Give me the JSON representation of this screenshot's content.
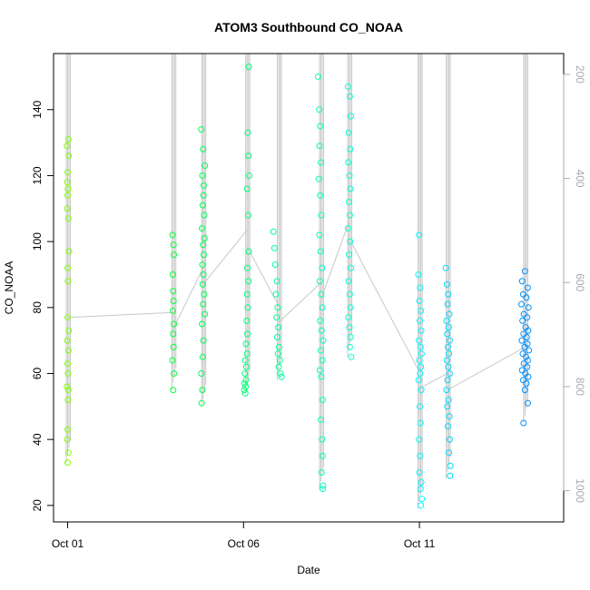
{
  "chart_data": {
    "type": "scatter",
    "title": "ATOM3 Southbound CO_NOAA",
    "xlabel": "Date",
    "ylabel": "CO_NOAA",
    "x_ticks": [
      "Oct 01",
      "Oct 06",
      "Oct 11"
    ],
    "x_tick_days": [
      1,
      6,
      11
    ],
    "xlim": [
      0.6,
      15.1
    ],
    "ylim": [
      15,
      157
    ],
    "y_ticks": [
      20,
      40,
      60,
      80,
      100,
      120,
      140
    ],
    "y2_ticks": [
      200,
      400,
      600,
      800,
      1000
    ],
    "y2lim": [
      1060,
      160
    ],
    "y2_color": "#aaaaaa",
    "grid": false,
    "colors": {
      "marker_gradient": [
        "#80ff00",
        "#00ff40",
        "#00ffaa",
        "#00ffff",
        "#0090ff"
      ],
      "profile_line": "#c8c8c8"
    },
    "profiles": [
      {
        "day": 1.0,
        "ymin": 33,
        "ymax": 131
      },
      {
        "day": 4.0,
        "ymin": 55,
        "ymax": 102
      },
      {
        "day": 4.85,
        "ymin": 50,
        "ymax": 134
      },
      {
        "day": 6.1,
        "ymin": 54,
        "ymax": 153
      },
      {
        "day": 7.0,
        "ymin": 58,
        "ymax": 103
      },
      {
        "day": 8.2,
        "ymin": 25,
        "ymax": 150
      },
      {
        "day": 9.0,
        "ymin": 65,
        "ymax": 147
      },
      {
        "day": 11.0,
        "ymin": 19,
        "ymax": 102
      },
      {
        "day": 11.8,
        "ymin": 28,
        "ymax": 92
      },
      {
        "day": 14.0,
        "ymin": 45,
        "ymax": 91
      }
    ],
    "series": [
      {
        "values": [
          [
            1.02,
            131
          ],
          [
            0.98,
            129
          ],
          [
            1.03,
            126
          ],
          [
            1.0,
            121
          ],
          [
            0.99,
            118
          ],
          [
            1.01,
            116
          ],
          [
            1.0,
            114
          ],
          [
            0.99,
            110
          ],
          [
            1.02,
            107
          ],
          [
            1.04,
            97
          ],
          [
            1.0,
            92
          ],
          [
            1.01,
            88
          ],
          [
            1.0,
            77
          ],
          [
            1.03,
            73
          ],
          [
            0.99,
            70
          ],
          [
            1.02,
            67
          ],
          [
            1.0,
            63
          ],
          [
            1.01,
            60
          ],
          [
            0.98,
            56
          ],
          [
            1.02,
            55
          ],
          [
            1.01,
            52
          ],
          [
            1.0,
            43
          ],
          [
            0.99,
            40
          ],
          [
            1.02,
            36
          ],
          [
            1.0,
            33
          ]
        ]
      },
      {
        "values": [
          [
            3.98,
            102
          ],
          [
            4.01,
            99
          ],
          [
            4.02,
            96
          ],
          [
            3.99,
            90
          ],
          [
            4.0,
            85
          ],
          [
            4.01,
            82
          ],
          [
            3.99,
            79
          ],
          [
            4.02,
            75
          ],
          [
            4.0,
            72
          ],
          [
            4.01,
            68
          ],
          [
            3.98,
            64
          ],
          [
            4.02,
            60
          ],
          [
            4.0,
            55
          ]
        ]
      },
      {
        "values": [
          [
            4.8,
            134
          ],
          [
            4.85,
            128
          ],
          [
            4.9,
            123
          ],
          [
            4.83,
            120
          ],
          [
            4.87,
            117
          ],
          [
            4.86,
            114
          ],
          [
            4.84,
            111
          ],
          [
            4.88,
            108
          ],
          [
            4.82,
            104
          ],
          [
            4.89,
            101
          ],
          [
            4.85,
            99
          ],
          [
            4.87,
            96
          ],
          [
            4.83,
            93
          ],
          [
            4.86,
            90
          ],
          [
            4.84,
            87
          ],
          [
            4.88,
            84
          ],
          [
            4.85,
            81
          ],
          [
            4.9,
            78
          ],
          [
            4.82,
            75
          ],
          [
            4.86,
            70
          ],
          [
            4.84,
            65
          ],
          [
            4.8,
            60
          ],
          [
            4.83,
            55
          ],
          [
            4.81,
            51
          ]
        ]
      },
      {
        "values": [
          [
            6.15,
            153
          ],
          [
            6.12,
            133
          ],
          [
            6.14,
            126
          ],
          [
            6.16,
            120
          ],
          [
            6.1,
            116
          ],
          [
            6.13,
            108
          ],
          [
            6.15,
            97
          ],
          [
            6.11,
            92
          ],
          [
            6.14,
            88
          ],
          [
            6.1,
            84
          ],
          [
            6.12,
            80
          ],
          [
            6.09,
            76
          ],
          [
            6.11,
            72
          ],
          [
            6.07,
            69
          ],
          [
            6.1,
            66
          ],
          [
            6.05,
            64
          ],
          [
            6.08,
            62
          ],
          [
            6.04,
            60
          ],
          [
            6.07,
            58
          ],
          [
            6.03,
            57
          ],
          [
            6.06,
            56
          ],
          [
            6.02,
            55
          ],
          [
            6.05,
            54
          ]
        ]
      },
      {
        "values": [
          [
            6.85,
            103
          ],
          [
            6.88,
            98
          ],
          [
            6.9,
            93
          ],
          [
            6.95,
            88
          ],
          [
            6.92,
            84
          ],
          [
            6.97,
            80
          ],
          [
            6.94,
            77
          ],
          [
            6.99,
            74
          ],
          [
            6.96,
            71
          ],
          [
            7.01,
            68
          ],
          [
            6.98,
            66
          ],
          [
            7.03,
            64
          ],
          [
            7.0,
            62
          ],
          [
            7.05,
            60
          ],
          [
            7.08,
            59
          ]
        ]
      },
      {
        "values": [
          [
            8.12,
            150
          ],
          [
            8.15,
            140
          ],
          [
            8.18,
            135
          ],
          [
            8.16,
            129
          ],
          [
            8.2,
            124
          ],
          [
            8.14,
            119
          ],
          [
            8.18,
            114
          ],
          [
            8.21,
            108
          ],
          [
            8.16,
            102
          ],
          [
            8.19,
            97
          ],
          [
            8.23,
            92
          ],
          [
            8.17,
            88
          ],
          [
            8.21,
            84
          ],
          [
            8.24,
            80
          ],
          [
            8.18,
            76
          ],
          [
            8.22,
            73
          ],
          [
            8.26,
            70
          ],
          [
            8.2,
            67
          ],
          [
            8.24,
            64
          ],
          [
            8.17,
            61
          ],
          [
            8.21,
            59
          ],
          [
            8.25,
            52
          ],
          [
            8.2,
            46
          ],
          [
            8.23,
            40
          ],
          [
            8.25,
            35
          ],
          [
            8.22,
            30
          ],
          [
            8.26,
            26
          ],
          [
            8.25,
            25
          ]
        ]
      },
      {
        "values": [
          [
            8.97,
            147
          ],
          [
            9.02,
            144
          ],
          [
            9.05,
            138
          ],
          [
            8.99,
            133
          ],
          [
            9.03,
            128
          ],
          [
            8.98,
            124
          ],
          [
            9.01,
            120
          ],
          [
            9.04,
            116
          ],
          [
            9.0,
            112
          ],
          [
            9.02,
            108
          ],
          [
            8.97,
            104
          ],
          [
            9.03,
            100
          ],
          [
            9.0,
            96
          ],
          [
            9.05,
            92
          ],
          [
            8.99,
            88
          ],
          [
            9.02,
            84
          ],
          [
            9.04,
            80
          ],
          [
            8.98,
            77
          ],
          [
            9.01,
            74
          ],
          [
            9.04,
            71
          ],
          [
            9.02,
            68
          ],
          [
            9.06,
            65
          ]
        ]
      },
      {
        "values": [
          [
            10.99,
            102
          ],
          [
            10.97,
            90
          ],
          [
            11.02,
            86
          ],
          [
            11.0,
            82
          ],
          [
            11.04,
            79
          ],
          [
            11.01,
            76
          ],
          [
            11.05,
            73
          ],
          [
            10.99,
            70
          ],
          [
            11.03,
            68
          ],
          [
            11.06,
            66
          ],
          [
            11.0,
            64
          ],
          [
            11.04,
            62
          ],
          [
            11.02,
            60
          ],
          [
            10.98,
            58
          ],
          [
            11.05,
            55
          ],
          [
            11.01,
            50
          ],
          [
            11.03,
            45
          ],
          [
            10.99,
            40
          ],
          [
            11.02,
            35
          ],
          [
            11.0,
            30
          ],
          [
            11.05,
            27
          ],
          [
            11.03,
            25
          ],
          [
            11.07,
            22
          ],
          [
            11.04,
            20
          ]
        ]
      },
      {
        "values": [
          [
            11.75,
            92
          ],
          [
            11.78,
            87
          ],
          [
            11.82,
            84
          ],
          [
            11.8,
            81
          ],
          [
            11.85,
            78
          ],
          [
            11.77,
            76
          ],
          [
            11.83,
            74
          ],
          [
            11.79,
            72
          ],
          [
            11.86,
            70
          ],
          [
            11.81,
            68
          ],
          [
            11.84,
            66
          ],
          [
            11.78,
            64
          ],
          [
            11.82,
            62
          ],
          [
            11.86,
            60
          ],
          [
            11.8,
            58
          ],
          [
            11.77,
            55
          ],
          [
            11.83,
            52
          ],
          [
            11.79,
            50
          ],
          [
            11.85,
            47
          ],
          [
            11.81,
            44
          ],
          [
            11.86,
            40
          ],
          [
            11.84,
            36
          ],
          [
            11.88,
            32
          ],
          [
            11.87,
            29
          ]
        ]
      },
      {
        "values": [
          [
            14.0,
            91
          ],
          [
            13.92,
            88
          ],
          [
            14.08,
            86
          ],
          [
            13.95,
            84
          ],
          [
            14.04,
            83
          ],
          [
            13.9,
            81
          ],
          [
            14.1,
            80
          ],
          [
            13.97,
            78
          ],
          [
            14.06,
            77
          ],
          [
            13.93,
            76
          ],
          [
            14.02,
            74
          ],
          [
            14.09,
            73
          ],
          [
            13.96,
            72
          ],
          [
            14.05,
            71
          ],
          [
            13.91,
            70
          ],
          [
            14.07,
            69
          ],
          [
            13.99,
            68
          ],
          [
            14.11,
            67
          ],
          [
            13.94,
            66
          ],
          [
            14.03,
            65
          ],
          [
            14.08,
            64
          ],
          [
            13.97,
            63
          ],
          [
            14.06,
            62
          ],
          [
            13.92,
            61
          ],
          [
            14.01,
            60
          ],
          [
            14.09,
            59
          ],
          [
            13.95,
            58
          ],
          [
            14.04,
            57
          ],
          [
            14.0,
            55
          ],
          [
            14.08,
            51
          ],
          [
            13.96,
            45
          ]
        ]
      }
    ]
  }
}
